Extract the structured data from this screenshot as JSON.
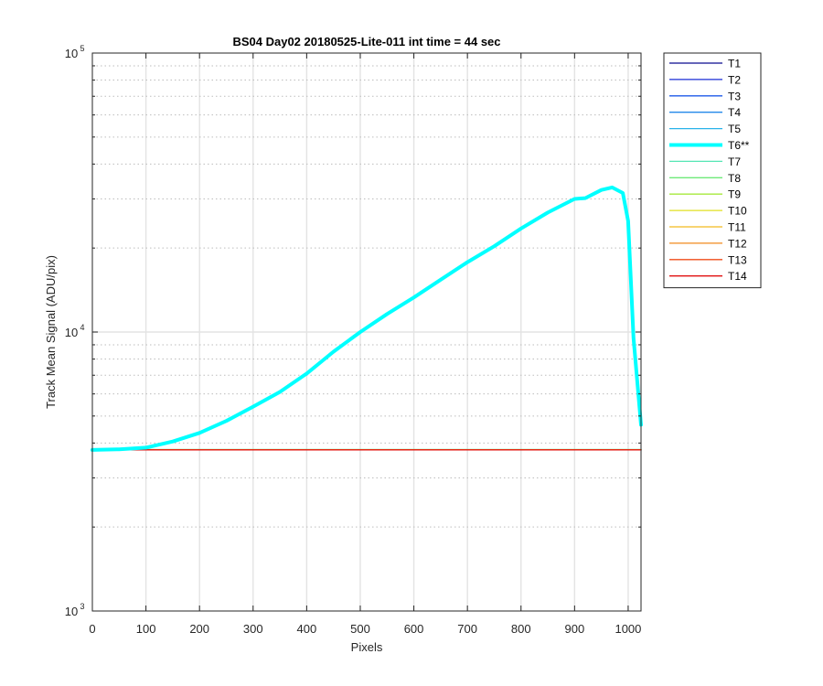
{
  "chart_data": {
    "type": "line",
    "title": "BS04 Day02 20180525-Lite-011 int time = 44 sec",
    "xlabel": "Pixels",
    "ylabel": "Track Mean Signal (ADU/pix)",
    "xlim": [
      0,
      1024
    ],
    "ylim": [
      1000,
      100000
    ],
    "yscale": "log",
    "grid": true,
    "legend_position": "outside-top-right",
    "x_ticks": [
      0,
      100,
      200,
      300,
      400,
      500,
      600,
      700,
      800,
      900,
      1000
    ],
    "y_ticks": [
      {
        "base": "10",
        "exp": "3",
        "value": 1000
      },
      {
        "base": "10",
        "exp": "4",
        "value": 10000
      },
      {
        "base": "10",
        "exp": "5",
        "value": 100000
      }
    ],
    "series": [
      {
        "name": "T1",
        "color": "#0a0a8f",
        "highlight": false,
        "x": [
          0,
          1024
        ],
        "y": [
          3780,
          3780
        ]
      },
      {
        "name": "T2",
        "color": "#1a2ed6",
        "highlight": false,
        "x": [
          0,
          1024
        ],
        "y": [
          3780,
          3780
        ]
      },
      {
        "name": "T3",
        "color": "#1e5ae8",
        "highlight": false,
        "x": [
          0,
          1024
        ],
        "y": [
          3780,
          3780
        ]
      },
      {
        "name": "T4",
        "color": "#2288ea",
        "highlight": false,
        "x": [
          0,
          1024
        ],
        "y": [
          3780,
          3780
        ]
      },
      {
        "name": "T5",
        "color": "#29b3ea",
        "highlight": false,
        "x": [
          0,
          1024
        ],
        "y": [
          3780,
          3780
        ]
      },
      {
        "name": "T6**",
        "color": "#00ffff",
        "highlight": true,
        "x": [
          0,
          50,
          100,
          150,
          200,
          250,
          300,
          350,
          400,
          450,
          500,
          550,
          600,
          650,
          700,
          750,
          800,
          850,
          900,
          920,
          950,
          970,
          990,
          1000,
          1010,
          1024
        ],
        "y": [
          3780,
          3800,
          3850,
          4050,
          4350,
          4800,
          5400,
          6100,
          7100,
          8500,
          10000,
          11600,
          13300,
          15400,
          17800,
          20300,
          23500,
          26800,
          30000,
          30200,
          32300,
          33000,
          31500,
          25000,
          9500,
          4650
        ]
      },
      {
        "name": "T7",
        "color": "#55e6b4",
        "highlight": false,
        "x": [
          0,
          1024
        ],
        "y": [
          3790,
          3790
        ]
      },
      {
        "name": "T8",
        "color": "#6ee978",
        "highlight": false,
        "x": [
          0,
          1024
        ],
        "y": [
          3790,
          3790
        ]
      },
      {
        "name": "T9",
        "color": "#a6e83c",
        "highlight": false,
        "x": [
          0,
          1024
        ],
        "y": [
          3785,
          3785
        ]
      },
      {
        "name": "T10",
        "color": "#e2e020",
        "highlight": false,
        "x": [
          0,
          1024
        ],
        "y": [
          3785,
          3785
        ]
      },
      {
        "name": "T11",
        "color": "#f2bb1e",
        "highlight": false,
        "x": [
          0,
          1024
        ],
        "y": [
          3780,
          3780
        ]
      },
      {
        "name": "T12",
        "color": "#f28a1c",
        "highlight": false,
        "x": [
          0,
          1024
        ],
        "y": [
          3780,
          3780
        ]
      },
      {
        "name": "T13",
        "color": "#f04c1a",
        "highlight": false,
        "x": [
          0,
          1024
        ],
        "y": [
          3780,
          3780
        ]
      },
      {
        "name": "T14",
        "color": "#e01010",
        "highlight": false,
        "x": [
          0,
          1024
        ],
        "y": [
          3780,
          3780
        ]
      }
    ]
  }
}
